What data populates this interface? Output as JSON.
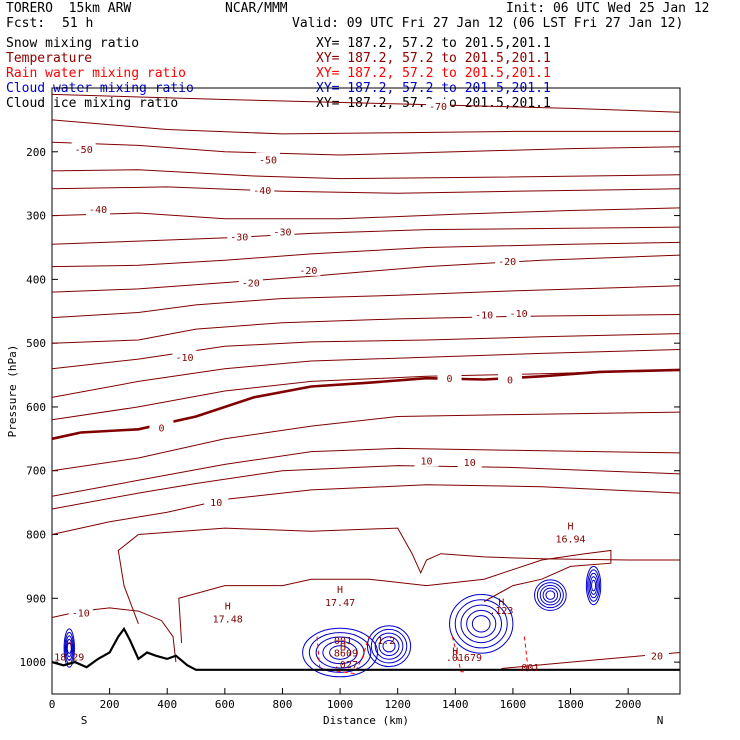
{
  "header": {
    "model": "TORERO  15km ARW",
    "org": "NCAR/MMM",
    "init": "Init: 06 UTC Wed 25 Jan 12",
    "fcst_label": "Fcst:",
    "fcst_value": "51 h",
    "valid": "Valid: 09 UTC Fri 27 Jan 12 (06 LST Fri 27 Jan 12)"
  },
  "fields": [
    {
      "name": "Snow mixing ratio",
      "xy": "XY= 187.2, 57.2 to 201.5,201.1",
      "color": "#000000"
    },
    {
      "name": "Temperature",
      "xy": "XY= 187.2, 57.2 to 201.5,201.1",
      "color": "#8b0000"
    },
    {
      "name": "Rain water mixing ratio",
      "xy": "XY= 187.2, 57.2 to 201.5,201.1",
      "color": "#ff0000"
    },
    {
      "name": "Cloud water mixing ratio",
      "xy": "XY= 187.2, 57.2 to 201.5,201.1",
      "color": "#0000cc"
    },
    {
      "name": "Cloud ice mixing ratio",
      "xy": "XY= 187.2, 57.2 to 201.5,201.1",
      "color": "#000000"
    }
  ],
  "chart_data": {
    "type": "contour cross-section",
    "xlabel": "Distance (km)",
    "ylabel": "Pressure (hPa)",
    "xlim": [
      0,
      2180
    ],
    "ylim": [
      1050,
      100
    ],
    "x_ticks": [
      0,
      200,
      400,
      600,
      800,
      1000,
      1200,
      1400,
      1600,
      1800,
      2000
    ],
    "x_tick_labels": [
      "0",
      "200",
      "400",
      "600",
      "800",
      "1000",
      "1200",
      "1400",
      "1600",
      "1800",
      "2000"
    ],
    "y_ticks": [
      200,
      300,
      400,
      500,
      600,
      700,
      800,
      900,
      1000
    ],
    "y_tick_labels": [
      "200",
      "300",
      "400",
      "500",
      "600",
      "700",
      "800",
      "900",
      "1000"
    ],
    "left_end": "S",
    "right_end": "N",
    "temperature_labels": [
      {
        "text": "-70",
        "x": 1340,
        "p": 128
      },
      {
        "text": "-50",
        "x": 110,
        "p": 196
      },
      {
        "text": "-50",
        "x": 750,
        "p": 212
      },
      {
        "text": "-40",
        "x": 730,
        "p": 260
      },
      {
        "text": "-40",
        "x": 160,
        "p": 290
      },
      {
        "text": "-30",
        "x": 800,
        "p": 325
      },
      {
        "text": "-30",
        "x": 650,
        "p": 333
      },
      {
        "text": "-20",
        "x": 890,
        "p": 385
      },
      {
        "text": "-20",
        "x": 690,
        "p": 405
      },
      {
        "text": "-20",
        "x": 1580,
        "p": 371
      },
      {
        "text": "-10",
        "x": 1500,
        "p": 455
      },
      {
        "text": "-10",
        "x": 1620,
        "p": 453
      },
      {
        "text": "-10",
        "x": 460,
        "p": 522
      },
      {
        "text": "0",
        "x": 1380,
        "p": 555
      },
      {
        "text": "0",
        "x": 1590,
        "p": 557
      },
      {
        "text": "0",
        "x": 380,
        "p": 632
      },
      {
        "text": "10",
        "x": 1300,
        "p": 684
      },
      {
        "text": "10",
        "x": 1450,
        "p": 686
      },
      {
        "text": "10",
        "x": 570,
        "p": 749
      },
      {
        "text": "-10",
        "x": 100,
        "p": 922
      },
      {
        "text": "20",
        "x": 2100,
        "p": 990
      }
    ],
    "maxima": [
      {
        "text": "H",
        "value": "17.48",
        "x": 610,
        "p": 930
      },
      {
        "text": "H",
        "value": "17.47",
        "x": 1000,
        "p": 904
      },
      {
        "text": "H",
        "value": "16.94",
        "x": 1800,
        "p": 805
      },
      {
        "text": "H",
        "value": "18.29",
        "x": 60,
        "p": 990
      }
    ],
    "small_labels": [
      {
        "text": ".001",
        "x": 1000,
        "p": 965
      },
      {
        "text": ".8609",
        "x": 1010,
        "p": 985
      },
      {
        "text": "H",
        "x": 1010,
        "p": 975
      },
      {
        "text": ".027",
        "x": 1020,
        "p": 1003
      },
      {
        "text": "1.2",
        "x": 1160,
        "p": 965
      },
      {
        "text": "H",
        "x": 1400,
        "p": 982
      },
      {
        "text": ".01679",
        "x": 1430,
        "p": 992
      },
      {
        "text": "H",
        "x": 1560,
        "p": 905
      },
      {
        "text": ".123",
        "x": 1560,
        "p": 918
      },
      {
        "text": ".001",
        "x": 1650,
        "p": 1008
      }
    ],
    "bold_zero_isotherm": [
      [
        0,
        650
      ],
      [
        100,
        640
      ],
      [
        300,
        635
      ],
      [
        500,
        615
      ],
      [
        700,
        585
      ],
      [
        900,
        568
      ],
      [
        1100,
        562
      ],
      [
        1300,
        555
      ],
      [
        1500,
        557
      ],
      [
        1700,
        552
      ],
      [
        1900,
        545
      ],
      [
        2180,
        542
      ]
    ],
    "terrain": [
      [
        0,
        1000
      ],
      [
        40,
        1005
      ],
      [
        80,
        1000
      ],
      [
        120,
        1008
      ],
      [
        160,
        995
      ],
      [
        200,
        985
      ],
      [
        230,
        960
      ],
      [
        250,
        948
      ],
      [
        270,
        965
      ],
      [
        300,
        995
      ],
      [
        330,
        985
      ],
      [
        360,
        990
      ],
      [
        400,
        995
      ],
      [
        430,
        990
      ],
      [
        470,
        1005
      ],
      [
        500,
        1012
      ],
      [
        2180,
        1012
      ]
    ]
  }
}
